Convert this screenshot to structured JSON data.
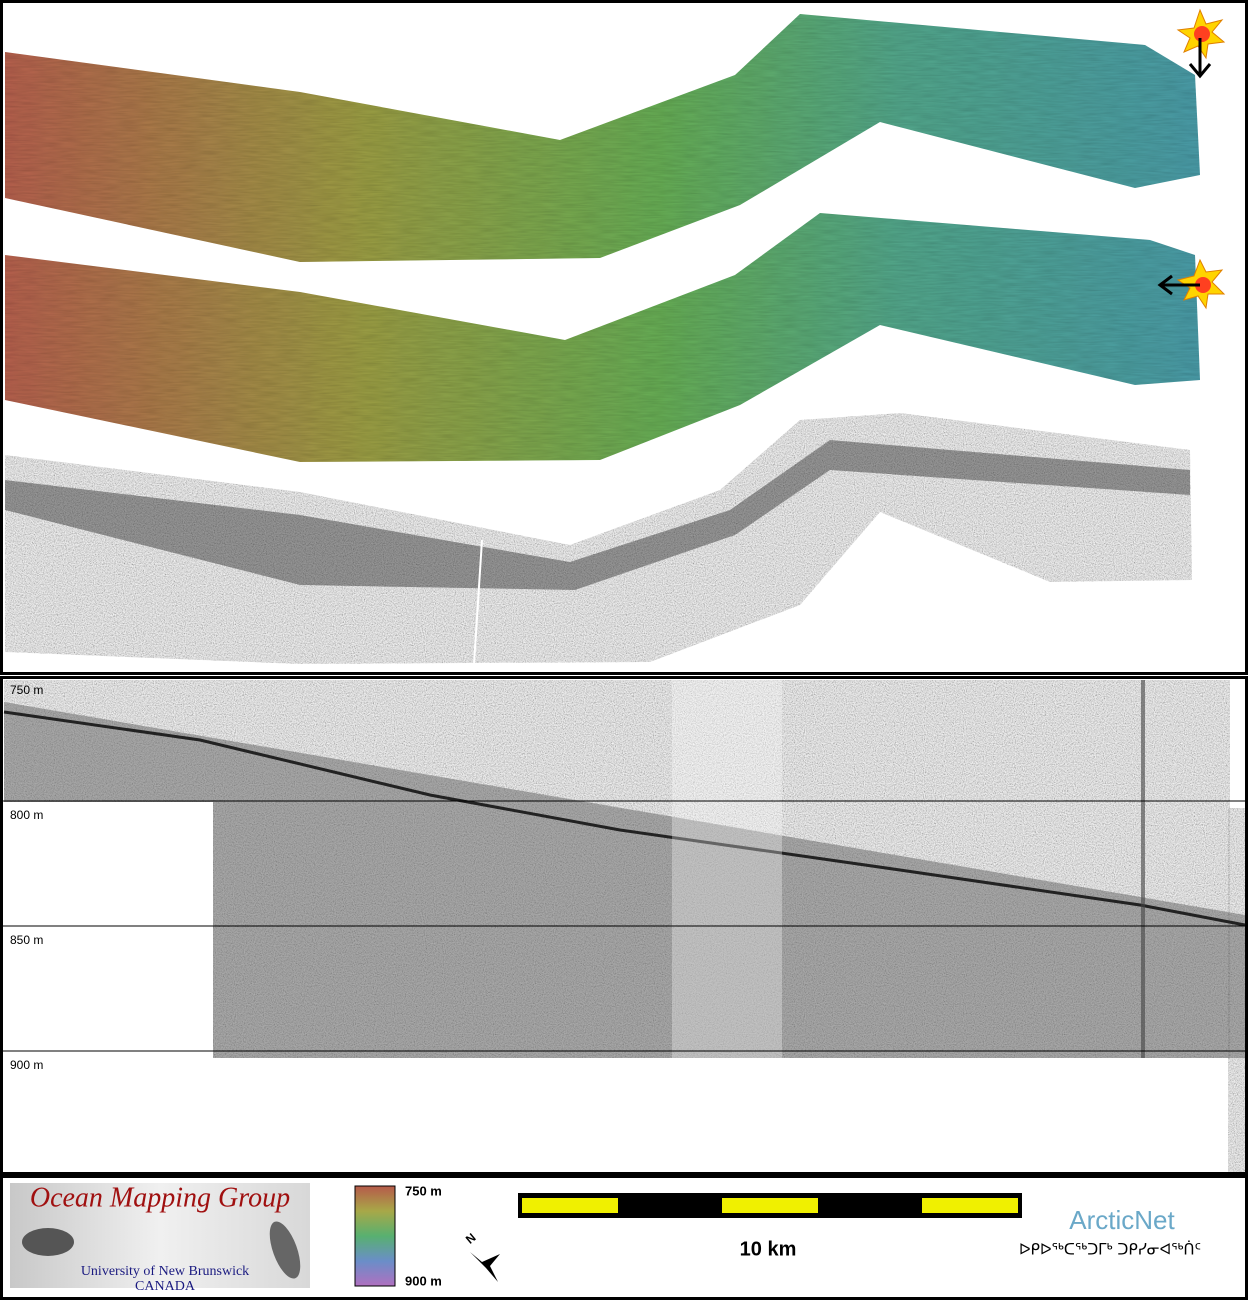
{
  "profile": {
    "depth_labels": [
      "750 m",
      "800 m",
      "850 m",
      "900 m"
    ]
  },
  "footer": {
    "logo": {
      "title": "Ocean Mapping Group",
      "university": "University of New Brunswick",
      "country": "CANADA"
    },
    "colorbar": {
      "top_label": "750 m",
      "bottom_label": "900 m"
    },
    "north": "N",
    "scale": "10 km",
    "partner": {
      "name": "ArcticNet",
      "syllabics": "ᐅᑭᐅᖅᑕᖅᑐᒥᒃ ᑐᑭᓯᓂᐊᖅᑏᑦ"
    }
  }
}
